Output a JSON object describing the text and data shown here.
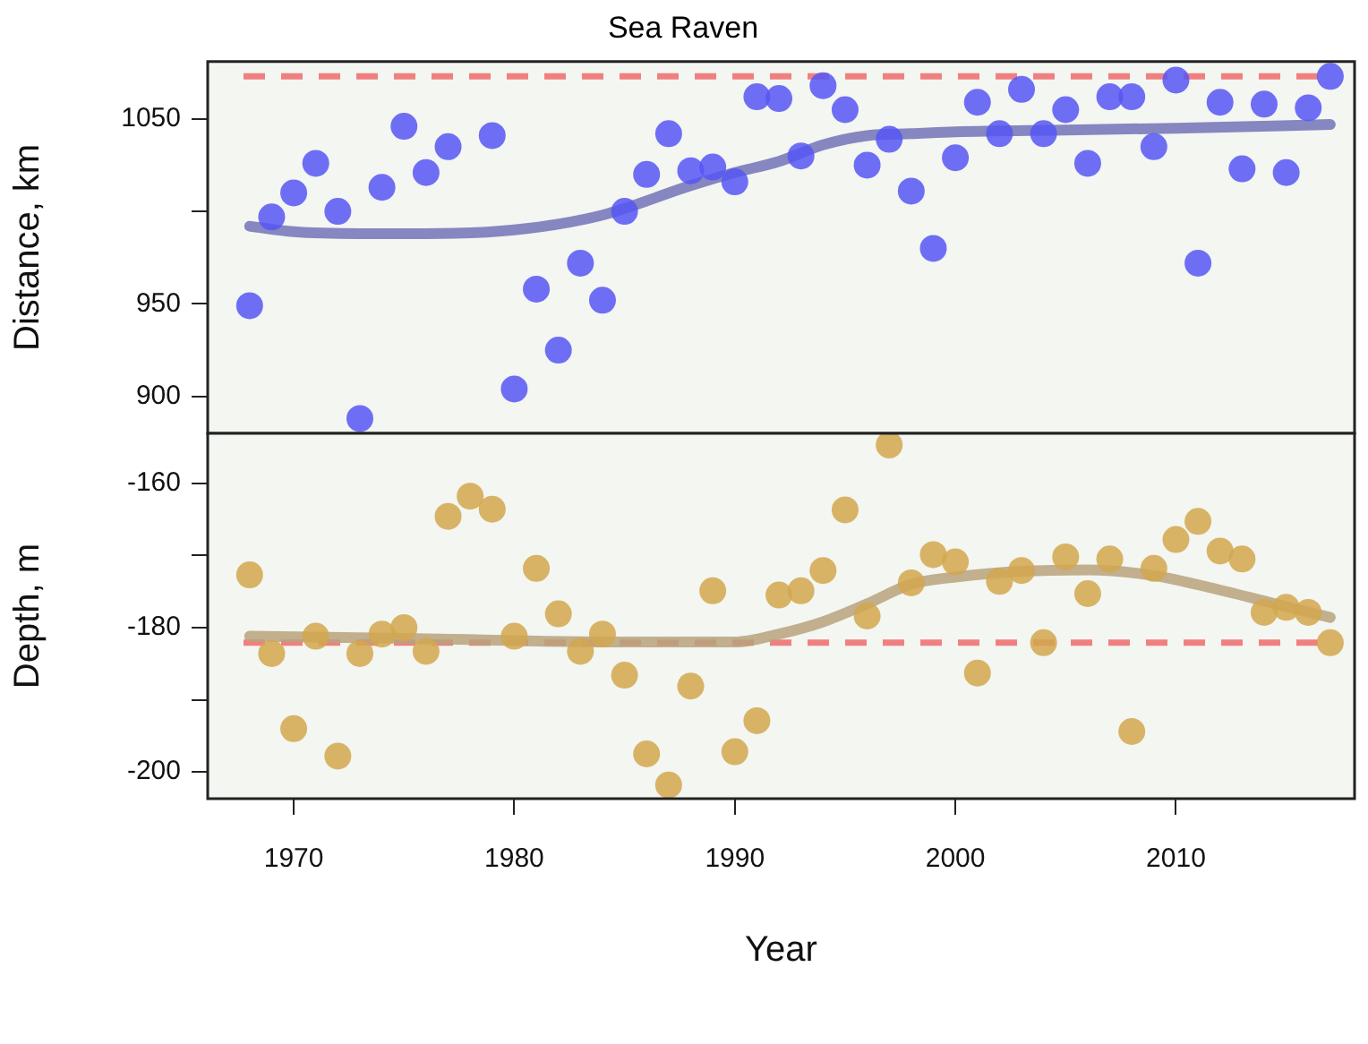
{
  "chart_data": [
    {
      "type": "scatter",
      "title": "Sea Raven",
      "ylabel": "Distance, km",
      "tick_labels": "y",
      "xlim": [
        1966.1,
        2018.1
      ],
      "ylim": [
        880,
        1081
      ],
      "yticks": [
        900,
        950,
        {
          "value": 1000,
          "label": null
        },
        1050
      ],
      "x": [
        1968,
        1969,
        1970,
        1971,
        1972,
        1973,
        1974,
        1975,
        1976,
        1977,
        1978,
        1979,
        1980,
        1981,
        1982,
        1983,
        1984,
        1985,
        1986,
        1987,
        1988,
        1989,
        1990,
        1991,
        1992,
        1993,
        1994,
        1995,
        1996,
        1997,
        1998,
        1999,
        2000,
        2001,
        2002,
        2003,
        2004,
        2005,
        2006,
        2007,
        2008,
        2009,
        2010,
        2011,
        2012,
        2013,
        2014,
        2015,
        2016,
        2017
      ],
      "series": [
        {
          "marker": "circle",
          "color": "#5656f4",
          "values": [
            949,
            997,
            1010,
            1026,
            1000,
            888,
            1013,
            1046,
            1021,
            1035,
            null,
            1041,
            904,
            958,
            925,
            972,
            952,
            1000,
            1020,
            1042,
            1022,
            1024,
            1016,
            1062,
            1061,
            1030,
            1068,
            1055,
            1025,
            1039,
            1011,
            980,
            1029,
            1059,
            1042,
            1066,
            1042,
            1055,
            1026,
            1062,
            1062,
            1035,
            1071,
            972,
            1059,
            1023,
            1058,
            1021,
            1056,
            1073
          ]
        },
        {
          "type": "line",
          "color": "#7272b8",
          "x": [
            1968,
            1970,
            1973,
            1976,
            1980,
            1984,
            1988,
            1990,
            1992,
            1994,
            1996,
            1998,
            2000,
            2005,
            2010,
            2017
          ],
          "values": [
            992,
            989,
            988,
            988,
            990,
            998,
            1014,
            1021,
            1027,
            1036,
            1041,
            1042,
            1043,
            1044,
            1045,
            1047
          ]
        }
      ],
      "ref_lines": [
        {
          "axis": "y",
          "value": 1073,
          "color": "#f08080",
          "line_style": "dashed"
        }
      ]
    },
    {
      "type": "scatter",
      "xlabel": "Year",
      "ylabel": "Depth, m",
      "xlim": [
        1966.1,
        2018.1
      ],
      "xticks": [
        1970,
        1980,
        1990,
        2000,
        2010
      ],
      "ylim": [
        -203.7,
        -153.1
      ],
      "yticks": [
        -200,
        {
          "value": -190,
          "label": null
        },
        -180,
        {
          "value": -170,
          "label": null
        },
        -160
      ],
      "x": [
        1968,
        1969,
        1970,
        1971,
        1972,
        1973,
        1974,
        1975,
        1976,
        1977,
        1978,
        1979,
        1980,
        1981,
        1982,
        1983,
        1984,
        1985,
        1986,
        1987,
        1988,
        1989,
        1990,
        1991,
        1992,
        1993,
        1994,
        1995,
        1996,
        1997,
        1998,
        1999,
        2000,
        2001,
        2002,
        2003,
        2004,
        2005,
        2006,
        2007,
        2008,
        2009,
        2010,
        2011,
        2012,
        2013,
        2014,
        2015,
        2016,
        2017
      ],
      "series": [
        {
          "marker": "circle",
          "color": "#d2a74e",
          "values": [
            -172.7,
            -183.6,
            -194,
            -181.2,
            -197.8,
            -183.6,
            -180.9,
            -180,
            -183.3,
            -164.6,
            -161.8,
            -163.6,
            -181.2,
            -171.8,
            -178.1,
            -183.3,
            -180.9,
            -186.6,
            -197.5,
            -201.8,
            -188.1,
            -174.9,
            -197.2,
            -192.9,
            -175.5,
            -174.9,
            -172.1,
            -163.7,
            -178.4,
            -154.7,
            -173.8,
            -169.9,
            -170.9,
            -186.3,
            -173.6,
            -172.1,
            -182.1,
            -170.2,
            -175.3,
            -170.5,
            -194.4,
            -171.8,
            -167.8,
            -165.3,
            -169.4,
            -170.5,
            -177.9,
            -177.2,
            -177.9,
            -182.1
          ]
        },
        {
          "type": "line",
          "color": "#b7a27c",
          "x": [
            1968,
            1975,
            1985,
            1990,
            1992,
            1994,
            1996,
            1998,
            2000,
            2003,
            2006,
            2009,
            2012,
            2015,
            2017
          ],
          "values": [
            -181.2,
            -181.5,
            -182,
            -182,
            -180.9,
            -179.2,
            -176.7,
            -174,
            -173,
            -172.2,
            -172,
            -172.8,
            -174.8,
            -177.1,
            -178.6
          ]
        }
      ],
      "ref_lines": [
        {
          "axis": "y",
          "value": -182.1,
          "color": "#f08080",
          "line_style": "dashed"
        }
      ]
    }
  ]
}
